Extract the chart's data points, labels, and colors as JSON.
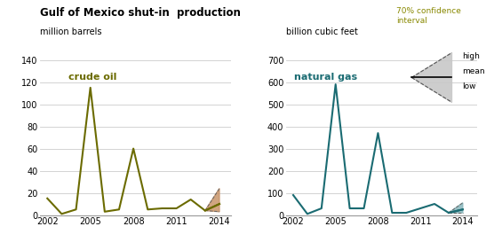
{
  "title": "Gulf of Mexico shut-in  production",
  "oil_ylabel": "million barrels",
  "gas_ylabel": "billion cubic feet",
  "oil_label": "crude oil",
  "gas_label": "natural gas",
  "oil_color": "#6b6b00",
  "gas_color": "#1a6b72",
  "oil_shade_color": "#c8956b",
  "gas_shade_color": "#8ab8be",
  "confidence_color": "#c8c8c8",
  "years": [
    2002,
    2003,
    2004,
    2005,
    2006,
    2007,
    2008,
    2009,
    2010,
    2011,
    2012,
    2013,
    2014
  ],
  "oil_values": [
    15,
    1,
    5,
    115,
    3,
    5,
    60,
    5,
    6,
    6,
    14,
    4,
    10
  ],
  "oil_high": [
    0,
    0,
    0,
    0,
    0,
    0,
    0,
    0,
    0,
    0,
    0,
    0,
    24
  ],
  "oil_low": [
    0,
    0,
    0,
    0,
    0,
    0,
    0,
    0,
    0,
    0,
    0,
    0,
    3
  ],
  "gas_values": [
    90,
    5,
    30,
    590,
    30,
    30,
    370,
    10,
    10,
    30,
    50,
    10,
    25
  ],
  "gas_high": [
    0,
    0,
    0,
    0,
    0,
    0,
    0,
    0,
    0,
    0,
    0,
    0,
    55
  ],
  "gas_low": [
    0,
    0,
    0,
    0,
    0,
    0,
    0,
    0,
    0,
    0,
    0,
    0,
    10
  ],
  "oil_ylim": [
    0,
    140
  ],
  "gas_ylim": [
    0,
    700
  ],
  "oil_yticks": [
    0,
    20,
    40,
    60,
    80,
    100,
    120,
    140
  ],
  "gas_yticks": [
    0,
    100,
    200,
    300,
    400,
    500,
    600,
    700
  ],
  "xticks": [
    2002,
    2005,
    2008,
    2011,
    2014
  ],
  "confidence_text": "70% confidence\ninterval",
  "bg_color": "#ffffff",
  "grid_color": "#cccccc",
  "title_color": "#333333",
  "label_color": "#555555"
}
